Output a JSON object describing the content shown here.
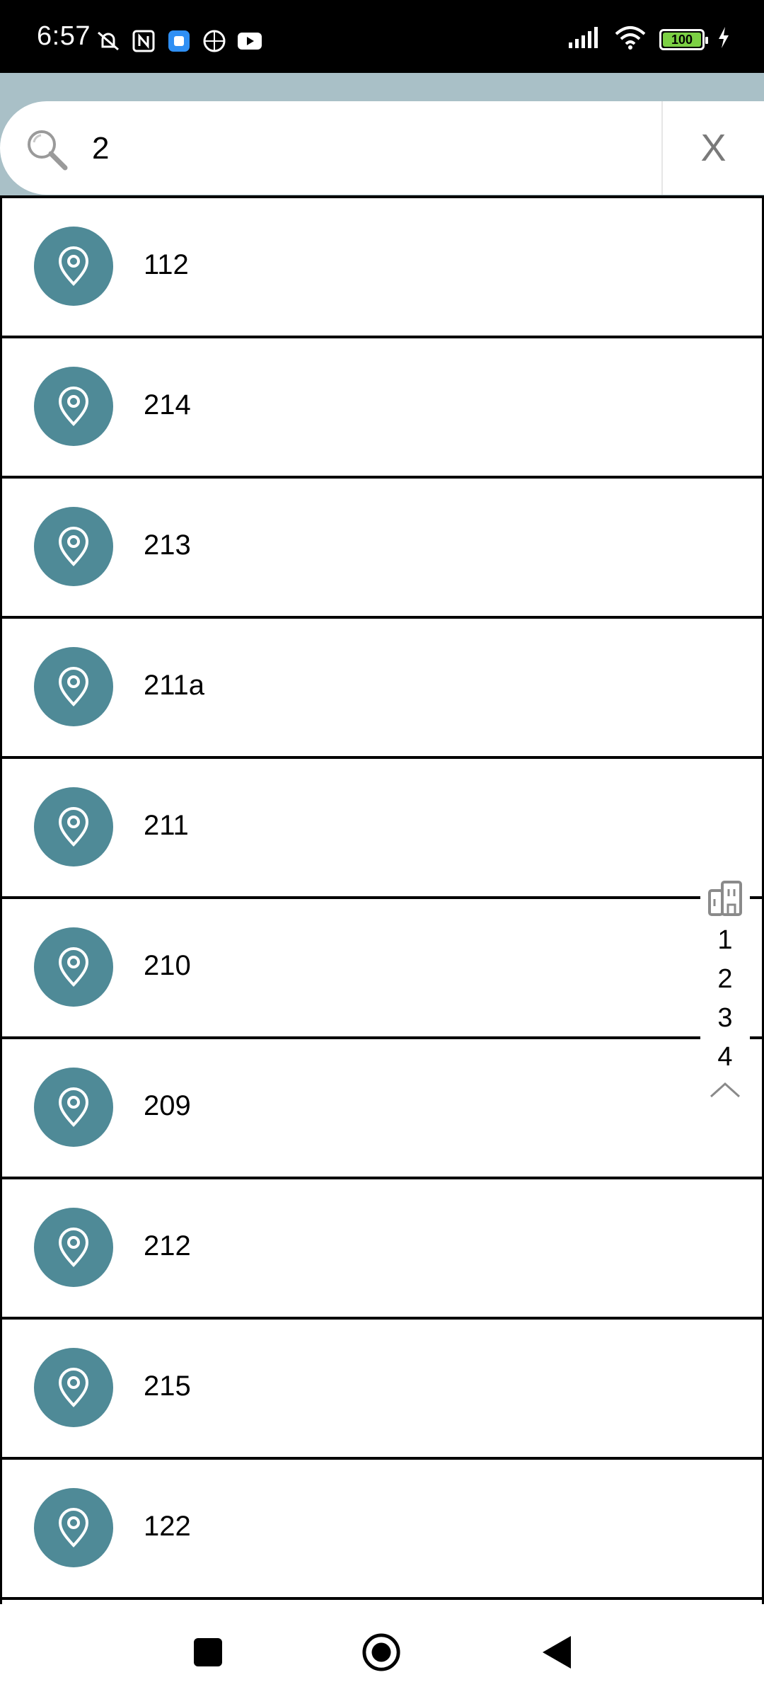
{
  "status_bar": {
    "time": "6:57",
    "battery": "100",
    "icons": [
      "muted-bell-icon",
      "nfc-icon",
      "app-notification-icon",
      "basketball-icon",
      "youtube-icon",
      "signal-icon",
      "wifi-icon",
      "battery-icon",
      "charging-icon"
    ]
  },
  "search": {
    "value": "2",
    "clear_label": "X"
  },
  "results": [
    {
      "label": "112"
    },
    {
      "label": "214"
    },
    {
      "label": "213"
    },
    {
      "label": "211a"
    },
    {
      "label": "211"
    },
    {
      "label": "210"
    },
    {
      "label": "209"
    },
    {
      "label": "212"
    },
    {
      "label": "215"
    },
    {
      "label": "122"
    }
  ],
  "floor_index": {
    "floors": [
      "1",
      "2",
      "3",
      "4"
    ]
  },
  "colors": {
    "header_band": "#a9c0c7",
    "pin_circle": "#4f8a97",
    "battery_fill": "#7cd044"
  }
}
